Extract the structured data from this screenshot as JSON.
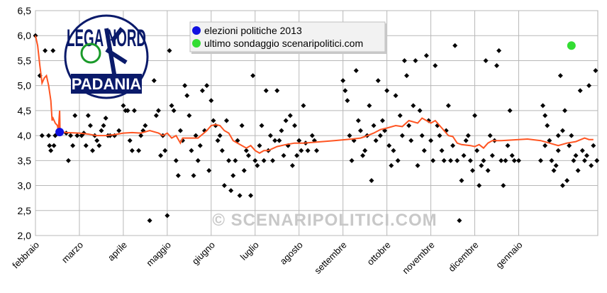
{
  "chart_data": {
    "type": "scatter",
    "title": "",
    "xlabel": "",
    "ylabel": "",
    "ylim": [
      2.0,
      6.5
    ],
    "yticks": [
      "2,0",
      "2,5",
      "3,0",
      "3,5",
      "4,0",
      "4,5",
      "5,0",
      "5,5",
      "6,0",
      "6,5"
    ],
    "xlim": [
      0,
      12.8
    ],
    "months": [
      {
        "label": "febbraio",
        "x": 0
      },
      {
        "label": "marzo",
        "x": 1
      },
      {
        "label": "aprile",
        "x": 2
      },
      {
        "label": "maggio",
        "x": 3
      },
      {
        "label": "giugno",
        "x": 4
      },
      {
        "label": "luglio",
        "x": 5
      },
      {
        "label": "agosto",
        "x": 6
      },
      {
        "label": "settembre",
        "x": 7
      },
      {
        "label": "ottobre",
        "x": 8
      },
      {
        "label": "novembre",
        "x": 9
      },
      {
        "label": "dicembre",
        "x": 10
      },
      {
        "label": "gennaio",
        "x": 11
      }
    ],
    "grid": true,
    "legend_position": "top-center",
    "legend": [
      {
        "label": "elezioni politiche 2013",
        "color": "#1010e0"
      },
      {
        "label": "ultimo sondaggio scenaripolitici.com",
        "color": "#33dd33"
      }
    ],
    "election_point": {
      "x": 0.55,
      "y": 4.07,
      "color": "#1010e0"
    },
    "last_poll_point": {
      "x": 12.2,
      "y": 5.8,
      "color": "#33dd33"
    },
    "trend_color": "#ff5522",
    "point_color": "#000000",
    "trend": [
      [
        0,
        6.0
      ],
      [
        0.05,
        5.8
      ],
      [
        0.1,
        5.4
      ],
      [
        0.15,
        5.05
      ],
      [
        0.2,
        5.15
      ],
      [
        0.25,
        5.2
      ],
      [
        0.3,
        5.0
      ],
      [
        0.35,
        4.7
      ],
      [
        0.38,
        4.3
      ],
      [
        0.4,
        4.35
      ],
      [
        0.45,
        4.25
      ],
      [
        0.5,
        4.2
      ],
      [
        0.52,
        4.1
      ],
      [
        0.55,
        4.5
      ],
      [
        0.56,
        4.08
      ],
      [
        0.7,
        4.06
      ],
      [
        1.0,
        4.05
      ],
      [
        1.2,
        4.03
      ],
      [
        1.4,
        4.0
      ],
      [
        1.6,
        4.0
      ],
      [
        1.8,
        4.02
      ],
      [
        2.0,
        4.05
      ],
      [
        2.2,
        4.06
      ],
      [
        2.4,
        4.05
      ],
      [
        2.6,
        4.1
      ],
      [
        2.8,
        4.05
      ],
      [
        2.9,
        4.0
      ],
      [
        3.0,
        4.05
      ],
      [
        3.1,
        3.95
      ],
      [
        3.2,
        4.0
      ],
      [
        3.3,
        3.85
      ],
      [
        3.35,
        3.95
      ],
      [
        3.5,
        3.95
      ],
      [
        3.7,
        3.95
      ],
      [
        3.9,
        4.1
      ],
      [
        4.0,
        4.2
      ],
      [
        4.1,
        4.22
      ],
      [
        4.2,
        4.2
      ],
      [
        4.3,
        4.1
      ],
      [
        4.4,
        4.05
      ],
      [
        4.5,
        3.9
      ],
      [
        4.6,
        3.85
      ],
      [
        4.7,
        3.8
      ],
      [
        4.8,
        3.75
      ],
      [
        4.9,
        3.8
      ],
      [
        5.0,
        3.7
      ],
      [
        5.1,
        3.65
      ],
      [
        5.2,
        3.7
      ],
      [
        5.3,
        3.7
      ],
      [
        5.5,
        3.78
      ],
      [
        5.7,
        3.82
      ],
      [
        5.9,
        3.85
      ],
      [
        6.1,
        3.85
      ],
      [
        6.4,
        3.87
      ],
      [
        6.8,
        3.9
      ],
      [
        7.2,
        3.93
      ],
      [
        7.4,
        3.95
      ],
      [
        7.5,
        3.98
      ],
      [
        7.7,
        4.05
      ],
      [
        7.85,
        4.12
      ],
      [
        8.0,
        4.15
      ],
      [
        8.2,
        4.2
      ],
      [
        8.35,
        4.18
      ],
      [
        8.5,
        4.3
      ],
      [
        8.7,
        4.25
      ],
      [
        8.8,
        4.35
      ],
      [
        9.0,
        4.25
      ],
      [
        9.1,
        4.3
      ],
      [
        9.25,
        4.15
      ],
      [
        9.4,
        4.0
      ],
      [
        9.5,
        3.98
      ],
      [
        9.6,
        3.85
      ],
      [
        9.7,
        3.82
      ],
      [
        9.9,
        3.8
      ],
      [
        10.0,
        3.78
      ],
      [
        10.1,
        3.82
      ],
      [
        10.2,
        3.75
      ],
      [
        10.3,
        3.85
      ],
      [
        10.4,
        3.9
      ],
      [
        10.6,
        3.9
      ],
      [
        11.0,
        3.92
      ],
      [
        11.2,
        3.93
      ],
      [
        11.5,
        3.9
      ],
      [
        11.7,
        3.85
      ],
      [
        11.9,
        3.8
      ],
      [
        12.1,
        3.85
      ],
      [
        12.3,
        3.88
      ],
      [
        12.5,
        3.95
      ],
      [
        12.6,
        3.92
      ],
      [
        12.7,
        3.92
      ]
    ],
    "points": [
      [
        0,
        6.0
      ],
      [
        0.1,
        5.2
      ],
      [
        0.15,
        4.0
      ],
      [
        0.22,
        5.7
      ],
      [
        0.3,
        4.0
      ],
      [
        0.32,
        3.8
      ],
      [
        0.35,
        3.7
      ],
      [
        0.4,
        5.7
      ],
      [
        0.42,
        3.8
      ],
      [
        0.45,
        4.0
      ],
      [
        0.7,
        4.05
      ],
      [
        0.75,
        3.5
      ],
      [
        0.8,
        4.0
      ],
      [
        0.85,
        3.8
      ],
      [
        0.9,
        4.4
      ],
      [
        0.95,
        4.0
      ],
      [
        1.05,
        4.0
      ],
      [
        1.15,
        3.8
      ],
      [
        1.2,
        4.4
      ],
      [
        1.25,
        4.2
      ],
      [
        1.3,
        3.7
      ],
      [
        1.35,
        4.0
      ],
      [
        1.4,
        3.9
      ],
      [
        1.45,
        3.8
      ],
      [
        1.5,
        4.1
      ],
      [
        1.55,
        4.2
      ],
      [
        1.6,
        4.35
      ],
      [
        1.65,
        4.0
      ],
      [
        1.7,
        4.0
      ],
      [
        1.8,
        4.0
      ],
      [
        1.9,
        4.1
      ],
      [
        2.0,
        4.6
      ],
      [
        2.05,
        4.5
      ],
      [
        2.1,
        4.5
      ],
      [
        2.15,
        3.9
      ],
      [
        2.2,
        3.7
      ],
      [
        2.25,
        4.5
      ],
      [
        2.35,
        3.7
      ],
      [
        2.4,
        4.0
      ],
      [
        2.45,
        4.1
      ],
      [
        2.5,
        4.2
      ],
      [
        2.6,
        2.3
      ],
      [
        2.7,
        5.1
      ],
      [
        2.75,
        4.4
      ],
      [
        2.8,
        4.5
      ],
      [
        2.85,
        3.6
      ],
      [
        2.9,
        4.0
      ],
      [
        2.95,
        3.7
      ],
      [
        3.05,
        5.7
      ],
      [
        3.1,
        4.6
      ],
      [
        3.15,
        4.5
      ],
      [
        3.2,
        3.5
      ],
      [
        3.25,
        3.2
      ],
      [
        3.3,
        4.1
      ],
      [
        3.35,
        3.9
      ],
      [
        3.4,
        5.0
      ],
      [
        3.45,
        4.8
      ],
      [
        3.5,
        4.4
      ],
      [
        3.55,
        3.7
      ],
      [
        3.6,
        3.2
      ],
      [
        3.65,
        4.0
      ],
      [
        3.7,
        3.5
      ],
      [
        3.75,
        3.8
      ],
      [
        3.8,
        4.9
      ],
      [
        3.85,
        4.1
      ],
      [
        3.9,
        5.0
      ],
      [
        3.95,
        3.3
      ],
      [
        4.0,
        4.7
      ],
      [
        4.05,
        4.3
      ],
      [
        4.1,
        4.2
      ],
      [
        4.15,
        3.9
      ],
      [
        4.2,
        4.0
      ],
      [
        4.25,
        3.7
      ],
      [
        4.3,
        3.0
      ],
      [
        4.35,
        4.3
      ],
      [
        4.4,
        3.5
      ],
      [
        4.45,
        2.9
      ],
      [
        4.5,
        3.2
      ],
      [
        4.55,
        3.5
      ],
      [
        4.6,
        3.9
      ],
      [
        4.65,
        2.8
      ],
      [
        4.7,
        4.2
      ],
      [
        4.75,
        3.3
      ],
      [
        4.8,
        3.7
      ],
      [
        4.85,
        3.6
      ],
      [
        4.9,
        2.8
      ],
      [
        4.95,
        5.2
      ],
      [
        5.0,
        3.5
      ],
      [
        5.05,
        3.4
      ],
      [
        5.1,
        3.8
      ],
      [
        5.15,
        4.2
      ],
      [
        5.2,
        3.5
      ],
      [
        5.25,
        4.9
      ],
      [
        5.3,
        3.7
      ],
      [
        5.35,
        4.0
      ],
      [
        5.4,
        3.5
      ],
      [
        5.45,
        3.9
      ],
      [
        5.5,
        4.9
      ],
      [
        5.55,
        3.9
      ],
      [
        5.6,
        4.1
      ],
      [
        5.65,
        3.6
      ],
      [
        5.7,
        4.3
      ],
      [
        5.75,
        3.8
      ],
      [
        5.8,
        4.4
      ],
      [
        5.85,
        3.4
      ],
      [
        5.9,
        4.2
      ],
      [
        5.95,
        3.6
      ],
      [
        6.0,
        3.9
      ],
      [
        6.05,
        3.7
      ],
      [
        6.1,
        4.6
      ],
      [
        6.15,
        3.85
      ],
      [
        6.2,
        3.7
      ],
      [
        6.3,
        4.0
      ],
      [
        6.35,
        3.9
      ],
      [
        6.4,
        3.7
      ],
      [
        3.0,
        2.4
      ],
      [
        1.1,
        4.05
      ],
      [
        7.0,
        5.1
      ],
      [
        7.05,
        4.9
      ],
      [
        7.1,
        4.7
      ],
      [
        7.15,
        4.0
      ],
      [
        7.2,
        3.5
      ],
      [
        7.25,
        3.9
      ],
      [
        7.3,
        5.3
      ],
      [
        7.35,
        4.3
      ],
      [
        7.4,
        4.1
      ],
      [
        7.45,
        3.6
      ],
      [
        7.5,
        3.7
      ],
      [
        7.55,
        4.0
      ],
      [
        7.6,
        4.6
      ],
      [
        7.65,
        3.1
      ],
      [
        7.7,
        4.2
      ],
      [
        7.75,
        3.9
      ],
      [
        7.8,
        5.1
      ],
      [
        7.85,
        4.0
      ],
      [
        7.9,
        4.3
      ],
      [
        7.95,
        4.1
      ],
      [
        8.0,
        4.9
      ],
      [
        8.05,
        3.8
      ],
      [
        8.1,
        3.4
      ],
      [
        8.15,
        3.7
      ],
      [
        8.2,
        4.8
      ],
      [
        8.25,
        3.5
      ],
      [
        8.3,
        4.4
      ],
      [
        8.35,
        4.0
      ],
      [
        8.4,
        5.5
      ],
      [
        8.45,
        5.2
      ],
      [
        8.5,
        4.2
      ],
      [
        8.55,
        3.9
      ],
      [
        8.6,
        4.6
      ],
      [
        8.65,
        5.5
      ],
      [
        8.7,
        3.4
      ],
      [
        8.75,
        4.5
      ],
      [
        8.8,
        4.0
      ],
      [
        8.85,
        3.7
      ],
      [
        8.9,
        5.6
      ],
      [
        8.95,
        4.3
      ],
      [
        9.0,
        3.9
      ],
      [
        9.05,
        3.5
      ],
      [
        9.1,
        5.4
      ],
      [
        9.15,
        4.2
      ],
      [
        9.2,
        4.0
      ],
      [
        9.25,
        3.7
      ],
      [
        9.3,
        3.5
      ],
      [
        9.35,
        4.1
      ],
      [
        9.4,
        4.6
      ],
      [
        9.45,
        3.5
      ],
      [
        9.5,
        3.8
      ],
      [
        9.55,
        5.8
      ],
      [
        9.6,
        3.5
      ],
      [
        9.65,
        2.3
      ],
      [
        9.7,
        3.1
      ],
      [
        9.75,
        3.6
      ],
      [
        9.8,
        3.9
      ],
      [
        9.85,
        4.0
      ],
      [
        9.9,
        3.5
      ],
      [
        9.95,
        3.3
      ],
      [
        10.0,
        4.4
      ],
      [
        10.05,
        3.7
      ],
      [
        10.1,
        3.0
      ],
      [
        10.15,
        3.4
      ],
      [
        10.2,
        3.5
      ],
      [
        10.25,
        5.5
      ],
      [
        10.3,
        3.3
      ],
      [
        10.35,
        4.0
      ],
      [
        10.4,
        3.6
      ],
      [
        10.45,
        3.9
      ],
      [
        10.5,
        5.4
      ],
      [
        10.55,
        5.7
      ],
      [
        10.6,
        3.5
      ],
      [
        10.65,
        3.0
      ],
      [
        10.7,
        3.5
      ],
      [
        10.75,
        3.8
      ],
      [
        10.8,
        4.5
      ],
      [
        10.85,
        3.6
      ],
      [
        10.9,
        3.5
      ],
      [
        11.0,
        3.5
      ],
      [
        11.5,
        3.5
      ],
      [
        11.55,
        4.6
      ],
      [
        11.6,
        3.8
      ],
      [
        11.65,
        4.2
      ],
      [
        11.7,
        3.9
      ],
      [
        11.75,
        3.5
      ],
      [
        11.8,
        3.3
      ],
      [
        11.85,
        3.4
      ],
      [
        11.9,
        3.7
      ],
      [
        11.95,
        5.2
      ],
      [
        12.0,
        3.0
      ],
      [
        12.05,
        4.5
      ],
      [
        12.1,
        3.1
      ],
      [
        12.15,
        3.8
      ],
      [
        12.2,
        4.0
      ],
      [
        12.25,
        3.5
      ],
      [
        12.3,
        3.6
      ],
      [
        12.35,
        3.3
      ],
      [
        12.4,
        4.9
      ],
      [
        12.45,
        3.7
      ],
      [
        12.5,
        3.5
      ],
      [
        12.55,
        3.6
      ],
      [
        12.6,
        5.0
      ],
      [
        12.65,
        3.4
      ],
      [
        12.7,
        3.8
      ],
      [
        12.75,
        5.3
      ],
      [
        12.78,
        3.5
      ],
      [
        12.0,
        4.1
      ],
      [
        11.9,
        4.0
      ],
      [
        11.6,
        4.4
      ]
    ]
  },
  "legend_labels": {
    "election": "elezioni politiche 2013",
    "last_poll": "ultimo sondaggio scenaripolitici.com"
  },
  "watermark": "© SCENARIPOLITICI.COM",
  "logo": {
    "top_text": "LEGA NORD",
    "bottom_text": "PADANIA",
    "ring_color": "#0a1a6a",
    "banner_color": "#0a1a6a",
    "emblem_color": "#1a9a2a"
  }
}
